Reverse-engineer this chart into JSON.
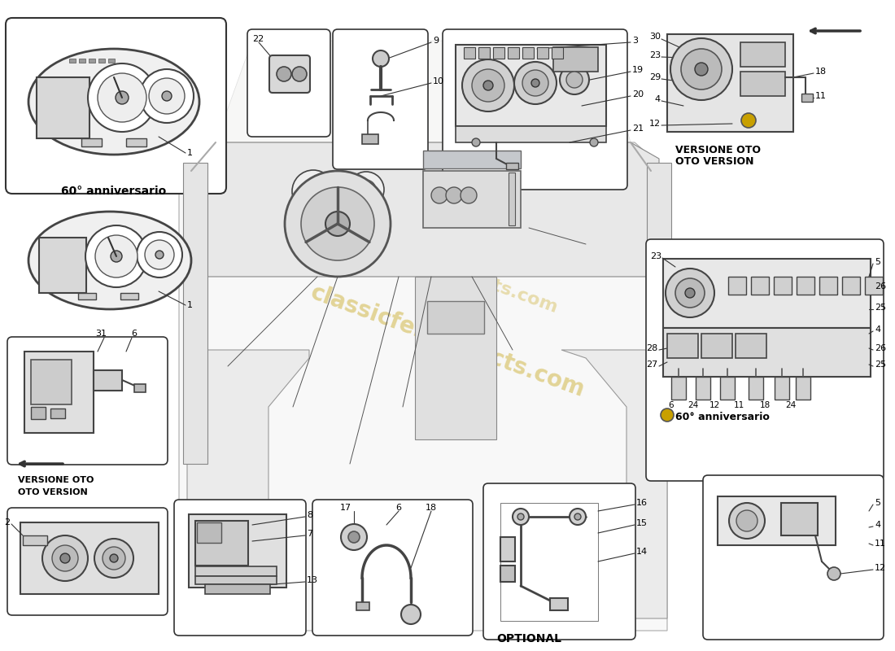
{
  "bg_color": "#ffffff",
  "line_color": "#2a2a2a",
  "text_color": "#000000",
  "light_gray": "#e8e8e8",
  "mid_gray": "#cccccc",
  "dark_gray": "#555555",
  "watermark_text": "classicferrarifacts.com",
  "watermark_color": "#c8a820",
  "labels": {
    "anniv1": "60° anniversario",
    "versione_oto": "VERSIONE OTO\nOTO VERSION",
    "anniv2": "60° anniversario",
    "optional": "OPTIONAL"
  },
  "figsize": [
    11.0,
    8.0
  ],
  "dpi": 100
}
